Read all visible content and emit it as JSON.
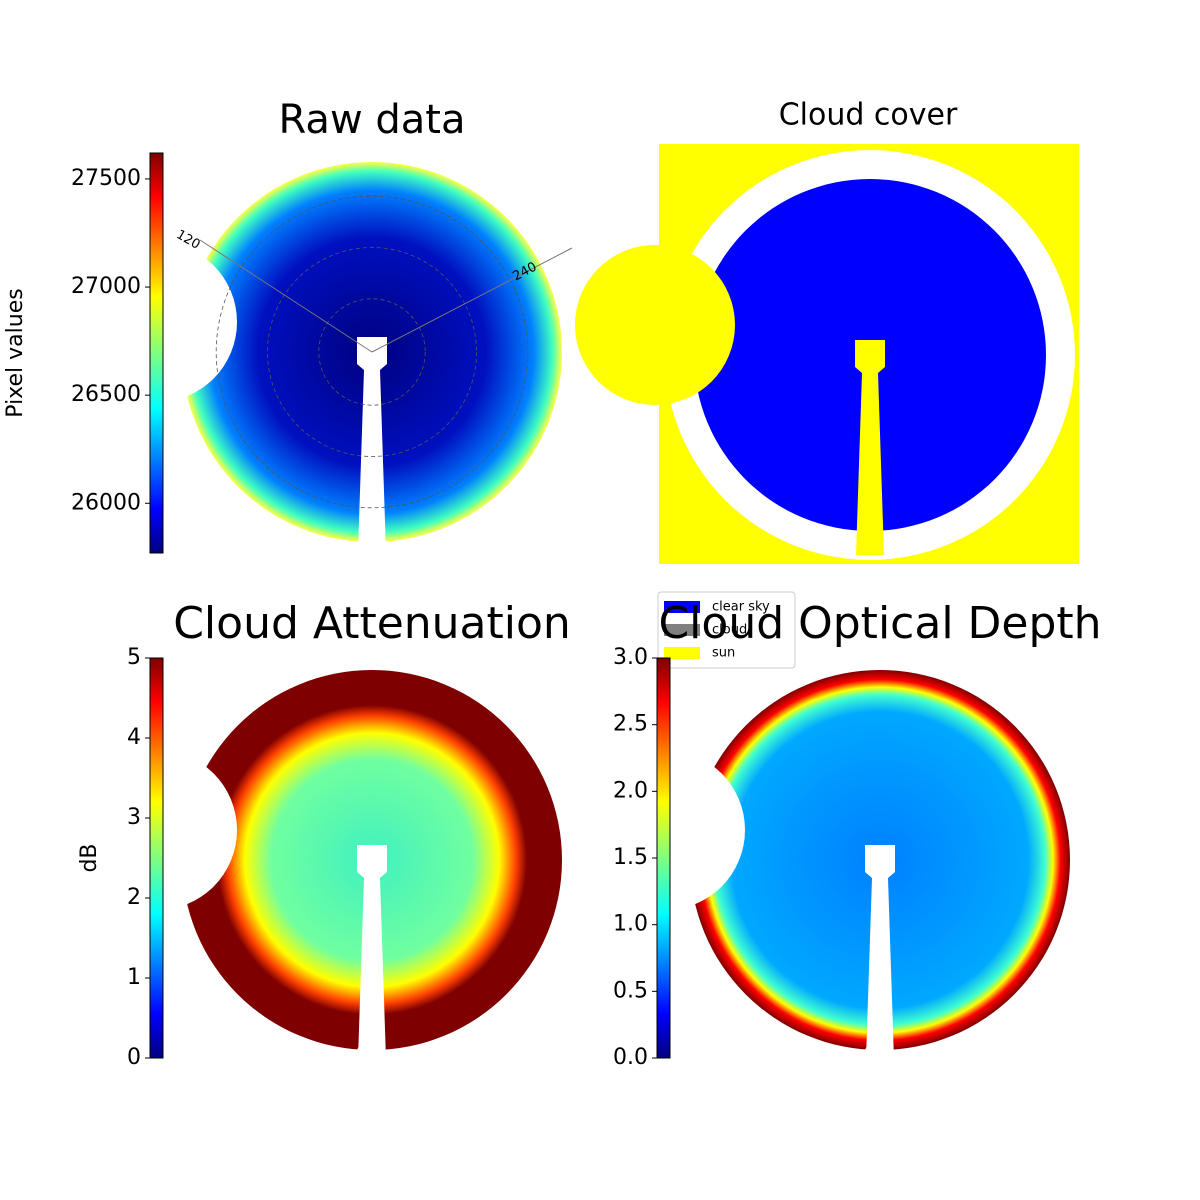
{
  "chart_data": [
    {
      "type": "heatmap",
      "title": "Raw data",
      "colorbar_label": "Pixel values",
      "ylim": [
        25770,
        27620
      ],
      "yticks": [
        26000,
        26500,
        27000,
        27500
      ],
      "annotations": [
        "120",
        "240"
      ]
    },
    {
      "type": "image",
      "title": "Cloud cover",
      "legend": [
        {
          "name": "clear sky",
          "color": "#0000ff"
        },
        {
          "name": "cloud",
          "color": "#808080"
        },
        {
          "name": "sun",
          "color": "#ffff00"
        }
      ]
    },
    {
      "type": "heatmap",
      "title": "Cloud Attenuation",
      "colorbar_label": "dB",
      "ylim": [
        0,
        5
      ],
      "yticks": [
        0,
        1,
        2,
        3,
        4,
        5
      ]
    },
    {
      "type": "heatmap",
      "title": "Cloud Optical Depth",
      "ylim": [
        0,
        3
      ],
      "yticks": [
        {
          "value": 0,
          "label": "0.0"
        },
        {
          "value": 0.5,
          "label": "0.5"
        },
        {
          "value": 1,
          "label": "1.0"
        },
        {
          "value": 1.5,
          "label": "1.5"
        },
        {
          "value": 2,
          "label": "2.0"
        },
        {
          "value": 2.5,
          "label": "2.5"
        },
        {
          "value": 3,
          "label": "3.0"
        }
      ]
    }
  ]
}
